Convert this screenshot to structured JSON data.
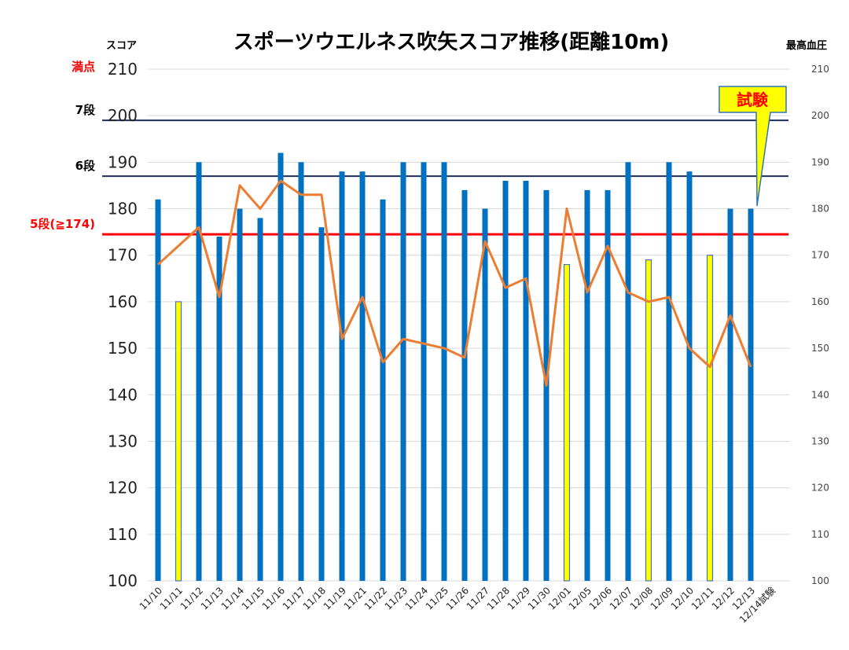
{
  "chart_data": {
    "type": "bar",
    "title": "スポーツウエルネス吹矢スコア推移(距離10m)",
    "ylabel": "スコア",
    "y2label": "最高血圧",
    "ylim": [
      100,
      210
    ],
    "y2lim": [
      100,
      210
    ],
    "yticks": [
      "100",
      "110",
      "120",
      "130",
      "140",
      "150",
      "160",
      "170",
      "180",
      "190",
      "200",
      "210"
    ],
    "y2ticks": [
      "100",
      "110",
      "120",
      "130",
      "140",
      "150",
      "160",
      "170",
      "180",
      "190",
      "200",
      "210"
    ],
    "grid": true,
    "categories": [
      "11/10",
      "11/11",
      "11/12",
      "11/13",
      "11/14",
      "11/15",
      "11/16",
      "11/17",
      "11/18",
      "11/19",
      "11/21",
      "11/22",
      "11/23",
      "11/24",
      "11/25",
      "11/26",
      "11/27",
      "11/28",
      "11/29",
      "11/30",
      "12/01",
      "12/05",
      "12/06",
      "12/07",
      "12/08",
      "12/09",
      "12/10",
      "12/11",
      "12/12",
      "12/13",
      "12/14試験"
    ],
    "bars": [
      182,
      160,
      190,
      174,
      180,
      178,
      192,
      190,
      176,
      188,
      188,
      182,
      190,
      190,
      190,
      184,
      180,
      186,
      186,
      184,
      168,
      184,
      184,
      190,
      169,
      190,
      188,
      170,
      180,
      180,
      null
    ],
    "bar_highlight": [
      false,
      true,
      false,
      false,
      false,
      false,
      false,
      false,
      false,
      false,
      false,
      false,
      false,
      false,
      false,
      false,
      false,
      false,
      false,
      false,
      true,
      false,
      false,
      false,
      true,
      false,
      false,
      true,
      false,
      false,
      false
    ],
    "line": [
      168,
      172,
      176,
      161,
      185,
      180,
      186,
      183,
      183,
      152,
      161,
      147,
      152,
      151,
      150,
      148,
      173,
      163,
      165,
      142,
      180,
      162,
      172,
      162,
      160,
      161,
      150,
      146,
      157,
      146,
      null
    ],
    "reference_lines": [
      {
        "label": "満点",
        "value": 210,
        "color": "#ff0000",
        "line": false
      },
      {
        "label": "7段",
        "value": 199,
        "color": "#000000",
        "line": true,
        "line_color": "#1f2d5a"
      },
      {
        "label": "6段",
        "value": 187,
        "color": "#000000",
        "line": true,
        "line_color": "#1f2d5a"
      },
      {
        "label": "5段(≧174)",
        "value": 174.5,
        "color": "#ff0000",
        "line": true,
        "line_color": "#ff0000"
      }
    ],
    "callout": "試験",
    "colors": {
      "bar": "#0070c0",
      "bar_highlight": "#ffff00",
      "line": "#ed7d31"
    }
  }
}
